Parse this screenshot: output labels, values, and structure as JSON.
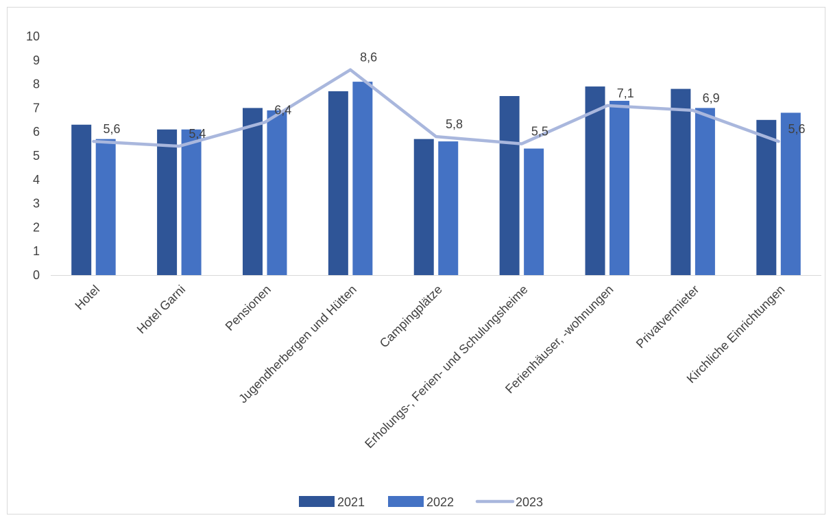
{
  "chart_data": {
    "type": "bar",
    "title": "",
    "xlabel": "",
    "ylabel": "",
    "ylim": [
      0,
      10
    ],
    "yticks": [
      0,
      1,
      2,
      3,
      4,
      5,
      6,
      7,
      8,
      9,
      10
    ],
    "grid": false,
    "legend_position": "bottom",
    "categories": [
      "Hotel",
      "Hotel Garni",
      "Pensionen",
      "Jugendherbergen und Hütten",
      "Campingplätze",
      "Erholungs-, Ferien- und Schulungsheime",
      "Ferienhäuser, -wohnungen",
      "Privatvermieter",
      "Kirchliche Einrichtungen"
    ],
    "series": [
      {
        "name": "2021",
        "type": "bar",
        "color": "#2f5597",
        "values": [
          6.3,
          6.1,
          7.0,
          7.7,
          5.7,
          7.5,
          7.9,
          7.8,
          6.5
        ]
      },
      {
        "name": "2022",
        "type": "bar",
        "color": "#4472c4",
        "values": [
          5.7,
          6.1,
          6.9,
          8.1,
          5.6,
          5.3,
          7.3,
          7.0,
          6.8
        ]
      },
      {
        "name": "2023",
        "type": "line",
        "color": "#a9b7dd",
        "values": [
          5.6,
          5.4,
          6.4,
          8.6,
          5.8,
          5.5,
          7.1,
          6.9,
          5.6
        ],
        "data_labels": [
          "5,6",
          "5,4",
          "6,4",
          "8,6",
          "5,8",
          "5,5",
          "7,1",
          "6,9",
          "5,6"
        ]
      }
    ]
  }
}
